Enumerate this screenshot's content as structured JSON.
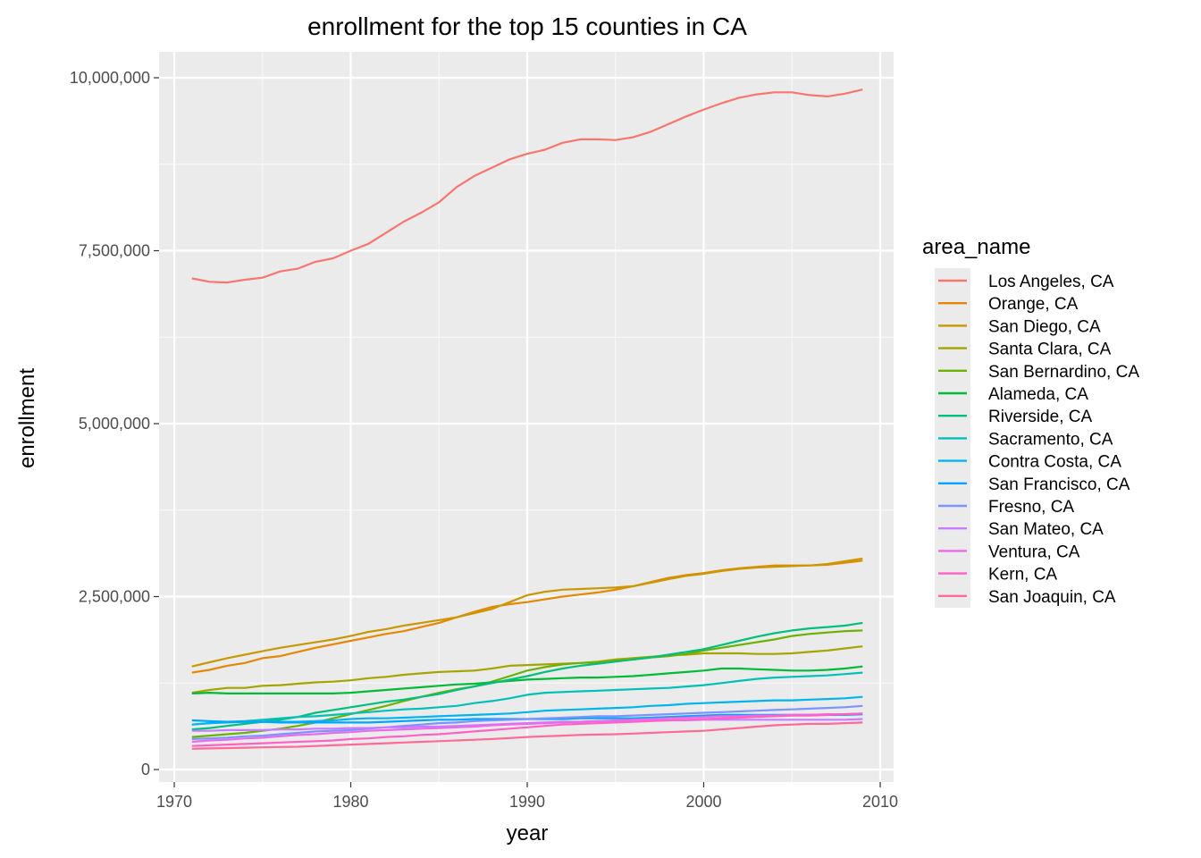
{
  "chart_data": {
    "type": "line",
    "title": "enrollment for the top 15 counties in CA",
    "xlabel": "year",
    "ylabel": "enrollment",
    "xlim": [
      1970,
      2010
    ],
    "ylim": [
      0,
      10000000
    ],
    "x_ticks": [
      1970,
      1980,
      1990,
      2000,
      2010
    ],
    "x_tick_labels": [
      "1970",
      "1980",
      "1990",
      "2000",
      "2010"
    ],
    "y_ticks": [
      0,
      2500000,
      5000000,
      7500000,
      10000000
    ],
    "y_tick_labels": [
      "0",
      "2,500,000",
      "5,000,000",
      "7,500,000",
      "10,000,000"
    ],
    "grid": true,
    "legend_title": "area_name",
    "legend_position": "right",
    "x": [
      1971,
      1972,
      1973,
      1974,
      1975,
      1976,
      1977,
      1978,
      1979,
      1980,
      1981,
      1982,
      1983,
      1984,
      1985,
      1986,
      1987,
      1988,
      1989,
      1990,
      1991,
      1992,
      1993,
      1994,
      1995,
      1996,
      1997,
      1998,
      1999,
      2000,
      2001,
      2002,
      2003,
      2004,
      2005,
      2006,
      2007,
      2008,
      2009
    ],
    "series": [
      {
        "name": "Los Angeles, CA",
        "color": "#F8766D",
        "values": [
          7100000,
          7050000,
          7040000,
          7080000,
          7110000,
          7200000,
          7240000,
          7340000,
          7390000,
          7500000,
          7600000,
          7760000,
          7920000,
          8050000,
          8200000,
          8420000,
          8580000,
          8700000,
          8820000,
          8900000,
          8960000,
          9060000,
          9110000,
          9110000,
          9100000,
          9140000,
          9220000,
          9330000,
          9440000,
          9540000,
          9630000,
          9710000,
          9760000,
          9790000,
          9790000,
          9750000,
          9730000,
          9770000,
          9830000
        ]
      },
      {
        "name": "Orange, CA",
        "color": "#E58700",
        "values": [
          1400000,
          1440000,
          1500000,
          1540000,
          1610000,
          1640000,
          1700000,
          1760000,
          1810000,
          1860000,
          1910000,
          1960000,
          2000000,
          2060000,
          2120000,
          2200000,
          2280000,
          2350000,
          2390000,
          2420000,
          2460000,
          2500000,
          2530000,
          2560000,
          2600000,
          2650000,
          2710000,
          2770000,
          2810000,
          2840000,
          2880000,
          2910000,
          2930000,
          2950000,
          2950000,
          2950000,
          2960000,
          2990000,
          3020000
        ]
      },
      {
        "name": "San Diego, CA",
        "color": "#C99800",
        "values": [
          1490000,
          1550000,
          1610000,
          1660000,
          1710000,
          1760000,
          1800000,
          1840000,
          1880000,
          1930000,
          1990000,
          2030000,
          2080000,
          2120000,
          2160000,
          2200000,
          2260000,
          2320000,
          2420000,
          2520000,
          2570000,
          2600000,
          2610000,
          2620000,
          2630000,
          2650000,
          2700000,
          2750000,
          2800000,
          2830000,
          2870000,
          2900000,
          2920000,
          2930000,
          2940000,
          2950000,
          2970000,
          3010000,
          3050000
        ]
      },
      {
        "name": "Santa Clara, CA",
        "color": "#A3A500",
        "values": [
          1110000,
          1150000,
          1180000,
          1180000,
          1210000,
          1220000,
          1240000,
          1260000,
          1270000,
          1290000,
          1320000,
          1340000,
          1370000,
          1390000,
          1410000,
          1420000,
          1430000,
          1460000,
          1500000,
          1510000,
          1520000,
          1530000,
          1540000,
          1560000,
          1590000,
          1610000,
          1630000,
          1650000,
          1660000,
          1680000,
          1680000,
          1680000,
          1670000,
          1670000,
          1680000,
          1700000,
          1720000,
          1750000,
          1780000
        ]
      },
      {
        "name": "San Bernardino, CA",
        "color": "#6BB100",
        "values": [
          470000,
          490000,
          510000,
          530000,
          560000,
          590000,
          630000,
          680000,
          740000,
          800000,
          860000,
          920000,
          990000,
          1050000,
          1110000,
          1160000,
          1200000,
          1270000,
          1350000,
          1430000,
          1480000,
          1520000,
          1540000,
          1550000,
          1570000,
          1590000,
          1620000,
          1640000,
          1670000,
          1720000,
          1760000,
          1800000,
          1840000,
          1880000,
          1930000,
          1960000,
          1980000,
          2000000,
          2010000
        ]
      },
      {
        "name": "Alameda, CA",
        "color": "#00BA38",
        "values": [
          1100000,
          1110000,
          1100000,
          1100000,
          1100000,
          1100000,
          1100000,
          1100000,
          1100000,
          1110000,
          1130000,
          1150000,
          1170000,
          1190000,
          1210000,
          1230000,
          1240000,
          1260000,
          1280000,
          1300000,
          1310000,
          1320000,
          1330000,
          1330000,
          1340000,
          1350000,
          1370000,
          1390000,
          1410000,
          1430000,
          1460000,
          1460000,
          1450000,
          1440000,
          1430000,
          1430000,
          1440000,
          1460000,
          1490000
        ]
      },
      {
        "name": "Riverside, CA",
        "color": "#00BF7D",
        "values": [
          580000,
          600000,
          630000,
          660000,
          690000,
          720000,
          760000,
          820000,
          860000,
          900000,
          940000,
          980000,
          1010000,
          1050000,
          1090000,
          1150000,
          1200000,
          1250000,
          1300000,
          1350000,
          1410000,
          1460000,
          1500000,
          1530000,
          1560000,
          1590000,
          1620000,
          1660000,
          1700000,
          1740000,
          1800000,
          1860000,
          1920000,
          1970000,
          2010000,
          2040000,
          2060000,
          2080000,
          2120000
        ]
      },
      {
        "name": "Sacramento, CA",
        "color": "#00C0B8",
        "values": [
          650000,
          670000,
          690000,
          700000,
          720000,
          740000,
          760000,
          770000,
          790000,
          810000,
          830000,
          850000,
          870000,
          880000,
          900000,
          920000,
          960000,
          990000,
          1030000,
          1080000,
          1110000,
          1120000,
          1130000,
          1140000,
          1150000,
          1160000,
          1170000,
          1180000,
          1200000,
          1220000,
          1250000,
          1280000,
          1310000,
          1330000,
          1340000,
          1350000,
          1360000,
          1380000,
          1400000
        ]
      },
      {
        "name": "Contra Costa, CA",
        "color": "#00B4EF",
        "values": [
          650000,
          670000,
          680000,
          690000,
          690000,
          690000,
          690000,
          700000,
          710000,
          730000,
          740000,
          740000,
          750000,
          760000,
          770000,
          780000,
          790000,
          800000,
          810000,
          830000,
          850000,
          860000,
          870000,
          880000,
          890000,
          900000,
          920000,
          930000,
          950000,
          960000,
          970000,
          980000,
          990000,
          1000000,
          1000000,
          1010000,
          1020000,
          1030000,
          1050000
        ]
      },
      {
        "name": "San Francisco, CA",
        "color": "#00A5FF",
        "values": [
          710000,
          700000,
          690000,
          690000,
          690000,
          680000,
          680000,
          680000,
          680000,
          680000,
          680000,
          690000,
          700000,
          710000,
          720000,
          720000,
          730000,
          730000,
          730000,
          730000,
          730000,
          730000,
          740000,
          740000,
          740000,
          740000,
          750000,
          760000,
          770000,
          780000,
          790000,
          790000,
          790000,
          790000,
          790000,
          790000,
          790000,
          790000,
          800000
        ]
      },
      {
        "name": "Fresno, CA",
        "color": "#7B94FF",
        "values": [
          440000,
          450000,
          460000,
          480000,
          490000,
          510000,
          530000,
          550000,
          560000,
          570000,
          590000,
          610000,
          630000,
          650000,
          670000,
          680000,
          700000,
          710000,
          720000,
          730000,
          740000,
          750000,
          760000,
          770000,
          770000,
          780000,
          790000,
          800000,
          810000,
          820000,
          830000,
          840000,
          850000,
          860000,
          870000,
          880000,
          890000,
          900000,
          920000
        ]
      },
      {
        "name": "San Mateo, CA",
        "color": "#C77CFF",
        "values": [
          560000,
          560000,
          570000,
          570000,
          570000,
          580000,
          580000,
          590000,
          590000,
          600000,
          600000,
          610000,
          610000,
          620000,
          620000,
          630000,
          640000,
          650000,
          660000,
          670000,
          680000,
          690000,
          690000,
          700000,
          700000,
          700000,
          710000,
          710000,
          710000,
          720000,
          720000,
          720000,
          720000,
          720000,
          720000,
          720000,
          720000,
          720000,
          730000
        ]
      },
      {
        "name": "Ventura, CA",
        "color": "#EA6AEB",
        "values": [
          400000,
          420000,
          430000,
          450000,
          460000,
          480000,
          500000,
          510000,
          530000,
          540000,
          560000,
          570000,
          580000,
          590000,
          600000,
          610000,
          620000,
          640000,
          650000,
          660000,
          670000,
          680000,
          690000,
          700000,
          710000,
          720000,
          730000,
          740000,
          750000,
          760000,
          770000,
          770000,
          780000,
          780000,
          790000,
          790000,
          800000,
          800000,
          810000
        ]
      },
      {
        "name": "Kern, CA",
        "color": "#FF61C7",
        "values": [
          340000,
          350000,
          360000,
          370000,
          380000,
          390000,
          400000,
          410000,
          420000,
          440000,
          450000,
          470000,
          480000,
          500000,
          510000,
          530000,
          550000,
          570000,
          590000,
          610000,
          630000,
          650000,
          660000,
          670000,
          680000,
          690000,
          700000,
          710000,
          720000,
          730000,
          740000,
          750000,
          760000,
          770000,
          780000,
          780000,
          790000,
          800000,
          810000
        ]
      },
      {
        "name": "San Joaquin, CA",
        "color": "#FF6A98",
        "values": [
          300000,
          305000,
          310000,
          315000,
          320000,
          325000,
          330000,
          340000,
          350000,
          360000,
          370000,
          380000,
          390000,
          400000,
          410000,
          420000,
          430000,
          440000,
          455000,
          470000,
          480000,
          490000,
          500000,
          505000,
          510000,
          520000,
          530000,
          540000,
          550000,
          560000,
          580000,
          600000,
          620000,
          640000,
          650000,
          660000,
          660000,
          670000,
          680000
        ]
      }
    ]
  }
}
